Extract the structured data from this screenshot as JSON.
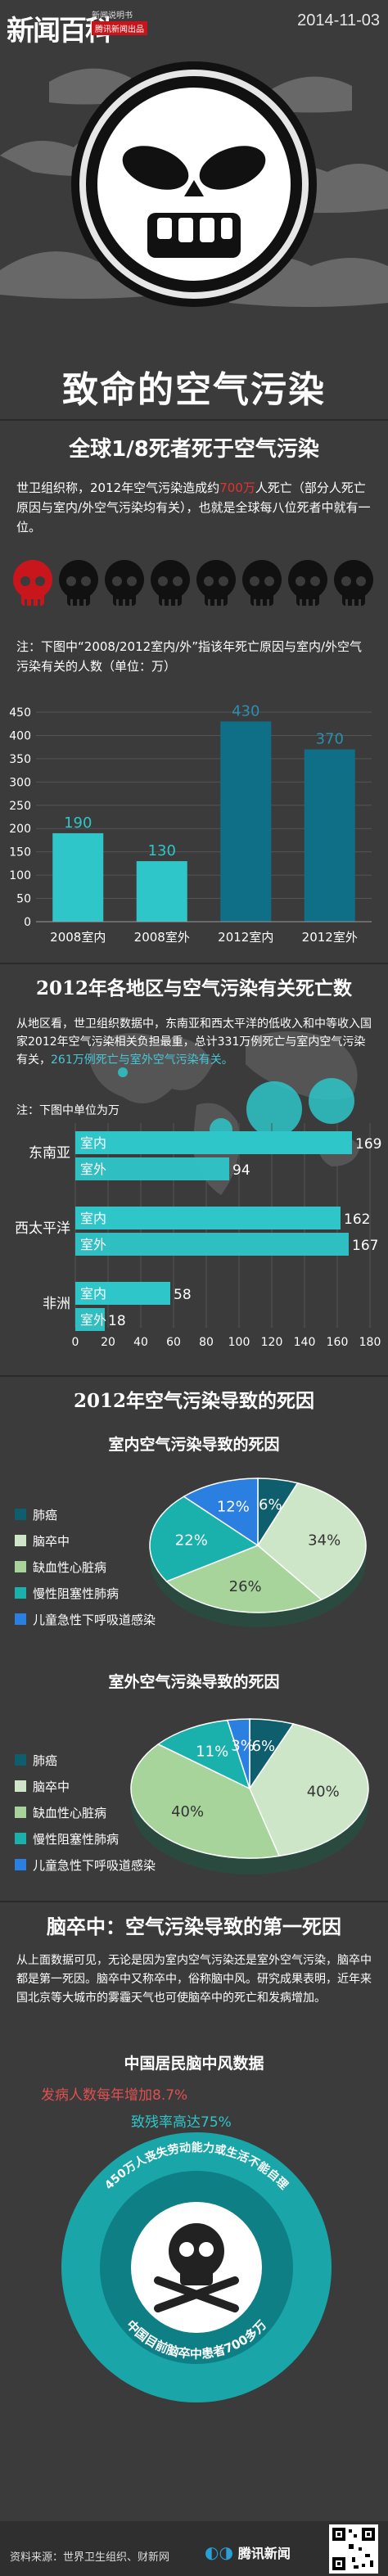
{
  "header": {
    "logo": "新闻百科",
    "sub1": "新闻说明书",
    "sub2": "腾讯新闻出品",
    "date": "2014-11-03"
  },
  "main_title": "致命的空气污染",
  "section1": {
    "title": "全球1/8死者死于空气污染",
    "para_a": "世卫组织称，2012年空气污染造成约",
    "para_highlight": "700万",
    "para_b": "人死亡（部分人死亡原因与室内/外空气污染均有关），也就是全球每八位死者中就有一位。",
    "skulls": 8,
    "highlighted_skulls": 1,
    "note": "注：下图中“2008/2012室内/外”指该年死亡原因与室内/外空气污染有关的人数（单位：万）"
  },
  "section2": {
    "title": "2012年各地区与空气污染有关死亡数",
    "para_a": "从地区看，世卫组织数据中，东南亚和西太平洋的低收入和中等收入国家2012年空气污染相关负担最重，总计331万例死亡与室内空气污染有关，",
    "para_highlight": "261万例死亡与室外空气污染有关。",
    "note": "注：下图中单位为万"
  },
  "section3": {
    "title": "2012年空气污染导致的死因",
    "indoor_title": "室内空气污染导致的死因",
    "outdoor_title": "室外空气污染导致的死因",
    "legend": [
      "肺癌",
      "脑卒中",
      "缺血性心脏病",
      "慢性阻塞性肺病",
      "儿童急性下呼吸道感染"
    ]
  },
  "section4": {
    "title": "脑卒中：空气污染导致的第一死因",
    "para": "从上面数据可见，无论是因为室内空气污染还是室外空气污染，脑卒中都是第一死因。脑卒中又称卒中，俗称脑中风。研究成果表明，近年来国北京等大城市的雾霾天气也可使脑卒中的死亡和发病增加。",
    "chart_title": "中国居民脑中风数据",
    "stat1": "发病人数每年增加8.7%",
    "stat2": "致残率高达75%",
    "ring_text1": "450万人丧失劳动能力或生活不能自理",
    "ring_text2": "中国目前脑卒中患者700多万"
  },
  "footer": {
    "source": "资料来源：世界卫生组织、财新网",
    "brand": "腾讯新闻"
  },
  "colors": {
    "teal_light": "#2ec6c9",
    "teal_dark": "#0f6f86",
    "accent_red": "#c9161c",
    "pie_dark_teal": "#0e5e6e",
    "pie_pale_green": "#cde6c8",
    "pie_green": "#a6d49a",
    "pie_teal": "#1ab0ab",
    "pie_blue": "#2a7fe0"
  },
  "chart_data": [
    {
      "type": "bar",
      "categories": [
        "2008室内",
        "2008室外",
        "2012室内",
        "2012室外"
      ],
      "values": [
        190,
        130,
        430,
        370
      ],
      "ylim": [
        0,
        450
      ],
      "yticks": [
        0,
        50,
        100,
        150,
        200,
        250,
        300,
        350,
        400,
        450
      ],
      "grid": true
    },
    {
      "type": "bar",
      "orientation": "horizontal",
      "groups": [
        {
          "region": "东南亚",
          "bars": [
            {
              "label": "室内",
              "value": 169
            },
            {
              "label": "室外",
              "value": 94
            }
          ]
        },
        {
          "region": "西太平洋",
          "bars": [
            {
              "label": "室内",
              "value": 162
            },
            {
              "label": "室外",
              "value": 167
            }
          ]
        },
        {
          "region": "非洲",
          "bars": [
            {
              "label": "室内",
              "value": 58
            },
            {
              "label": "室外",
              "value": 18
            }
          ]
        }
      ],
      "xlim": [
        0,
        180
      ],
      "xticks": [
        0,
        20,
        40,
        60,
        80,
        100,
        120,
        140,
        160,
        180
      ],
      "grid": true
    },
    {
      "type": "pie",
      "title": "室内空气污染导致的死因",
      "labels": [
        "肺癌",
        "脑卒中",
        "缺血性心脏病",
        "慢性阻塞性肺病",
        "儿童急性下呼吸道感染"
      ],
      "values": [
        6,
        34,
        26,
        22,
        12
      ]
    },
    {
      "type": "pie",
      "title": "室外空气污染导致的死因",
      "labels": [
        "肺癌",
        "脑卒中",
        "缺血性心脏病",
        "慢性阻塞性肺病",
        "儿童急性下呼吸道感染"
      ],
      "values": [
        6,
        40,
        40,
        11,
        3
      ]
    }
  ]
}
